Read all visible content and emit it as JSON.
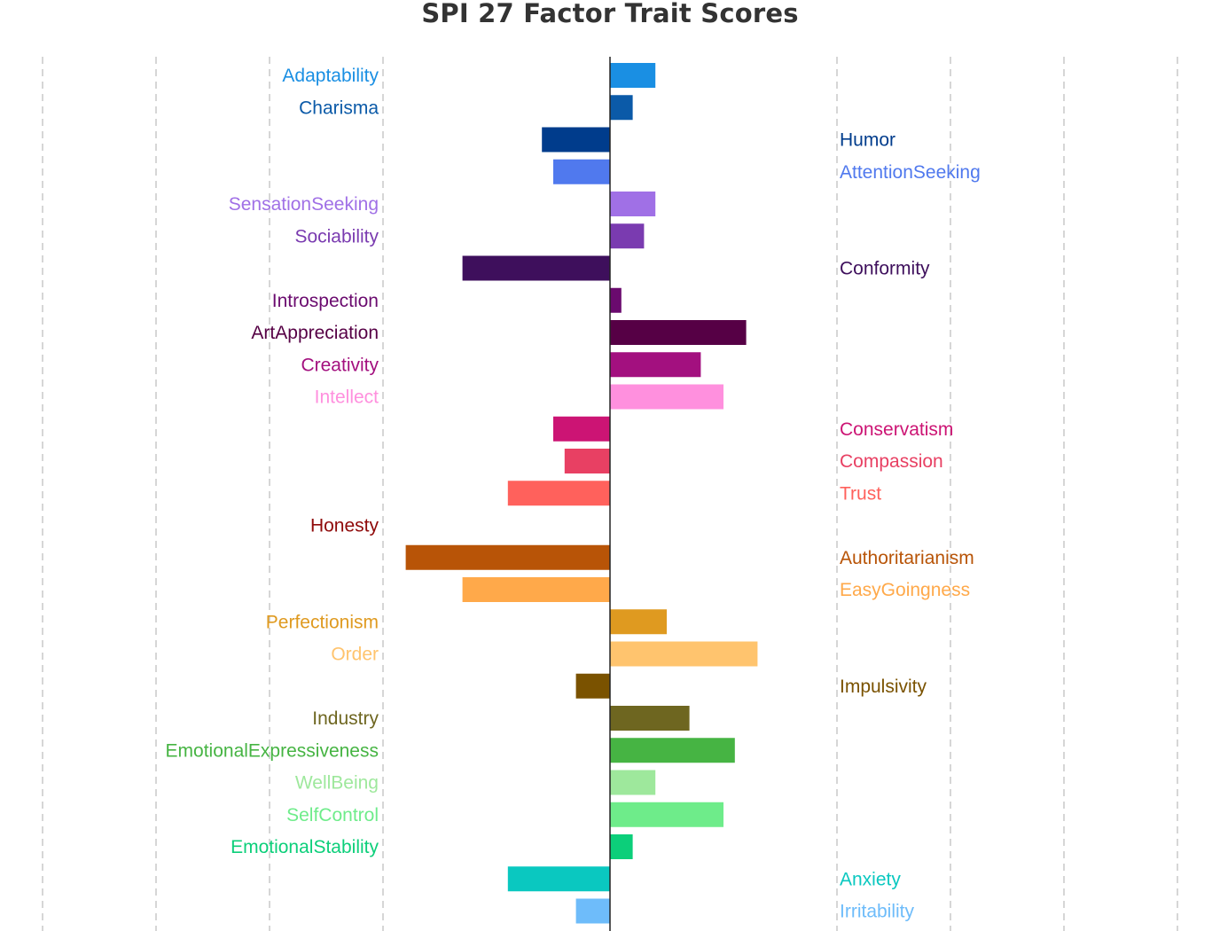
{
  "chart_data": {
    "type": "bar",
    "orientation": "horizontal",
    "title": "SPI 27 Factor Trait Scores",
    "xlabel": "",
    "ylabel": "",
    "xlim": [
      -5,
      5
    ],
    "grid": "vertical dashed",
    "legend": "none",
    "categories": [
      "Adaptability",
      "Charisma",
      "Humor",
      "AttentionSeeking",
      "SensationSeeking",
      "Sociability",
      "Conformity",
      "Introspection",
      "ArtAppreciation",
      "Creativity",
      "Intellect",
      "Conservatism",
      "Compassion",
      "Trust",
      "Honesty",
      "Authoritarianism",
      "EasyGoingness",
      "Perfectionism",
      "Order",
      "Impulsivity",
      "Industry",
      "EmotionalExpressiveness",
      "WellBeing",
      "SelfControl",
      "EmotionalStability",
      "Anxiety",
      "Irritability"
    ],
    "values": [
      0.4,
      0.2,
      -0.6,
      -0.5,
      0.4,
      0.3,
      -1.3,
      0.1,
      1.2,
      0.8,
      1.0,
      -0.5,
      -0.4,
      -0.9,
      0.0,
      -1.8,
      -1.3,
      0.5,
      1.3,
      -0.3,
      0.7,
      1.1,
      0.4,
      1.0,
      0.2,
      -0.9,
      -0.3
    ],
    "colors": [
      "#1a8fe3",
      "#0b5aa8",
      "#003c8c",
      "#5079ee",
      "#a070e6",
      "#7a3bb0",
      "#3e0f5c",
      "#6a0a6e",
      "#560045",
      "#a3107f",
      "#ff90de",
      "#cc1474",
      "#e84063",
      "#ff615c",
      "#8f0a0a",
      "#b85407",
      "#ffa94a",
      "#df9a20",
      "#ffc46e",
      "#7a5200",
      "#6e6620",
      "#46b443",
      "#9ee89c",
      "#6eec8a",
      "#0ccf7a",
      "#0ac8c0",
      "#6ebcfa"
    ]
  }
}
